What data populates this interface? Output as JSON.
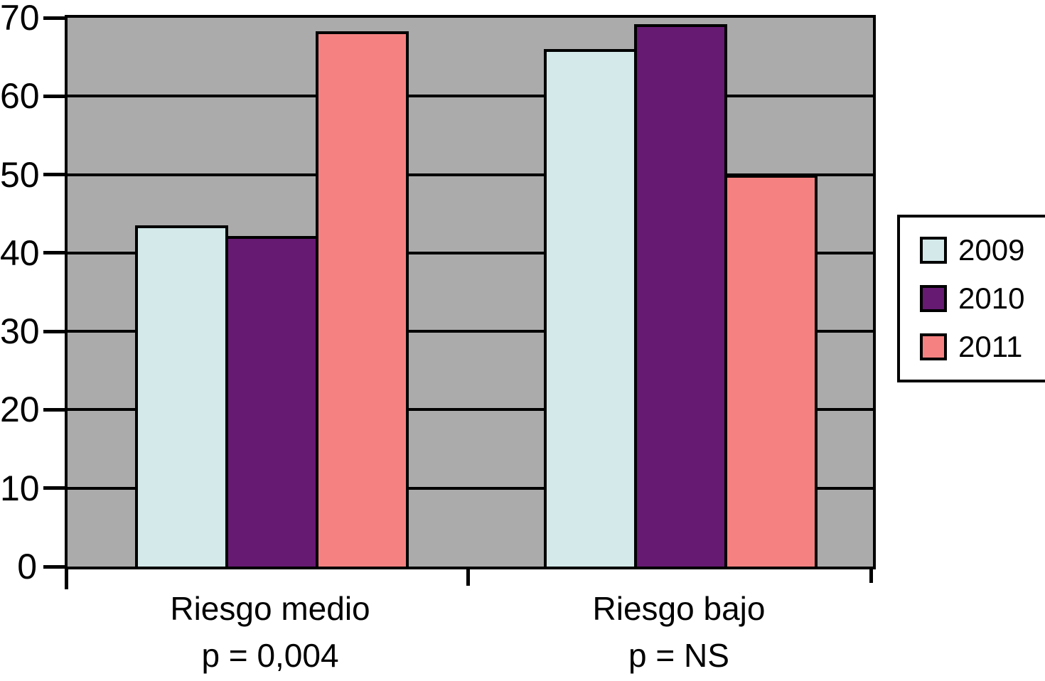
{
  "chart_data": {
    "type": "bar",
    "title": "",
    "xlabel": "",
    "ylabel": "",
    "ylim": [
      0,
      70
    ],
    "yticks": [
      0,
      10,
      20,
      30,
      40,
      50,
      60,
      70
    ],
    "grid": true,
    "plot_bg_color": "#ababab",
    "line_color": "#000000",
    "legend_position": "right",
    "categories": [
      {
        "label": "Riesgo medio",
        "sub": "p = 0,004"
      },
      {
        "label": "Riesgo bajo",
        "sub": "p = NS"
      }
    ],
    "series": [
      {
        "name": "2009",
        "color": "#d3e9ea",
        "values": [
          43.5,
          66
        ]
      },
      {
        "name": "2010",
        "color": "#661a72",
        "values": [
          42.2,
          69.2
        ]
      },
      {
        "name": "2011",
        "color": "#f58281",
        "values": [
          68.3,
          50
        ]
      }
    ]
  }
}
